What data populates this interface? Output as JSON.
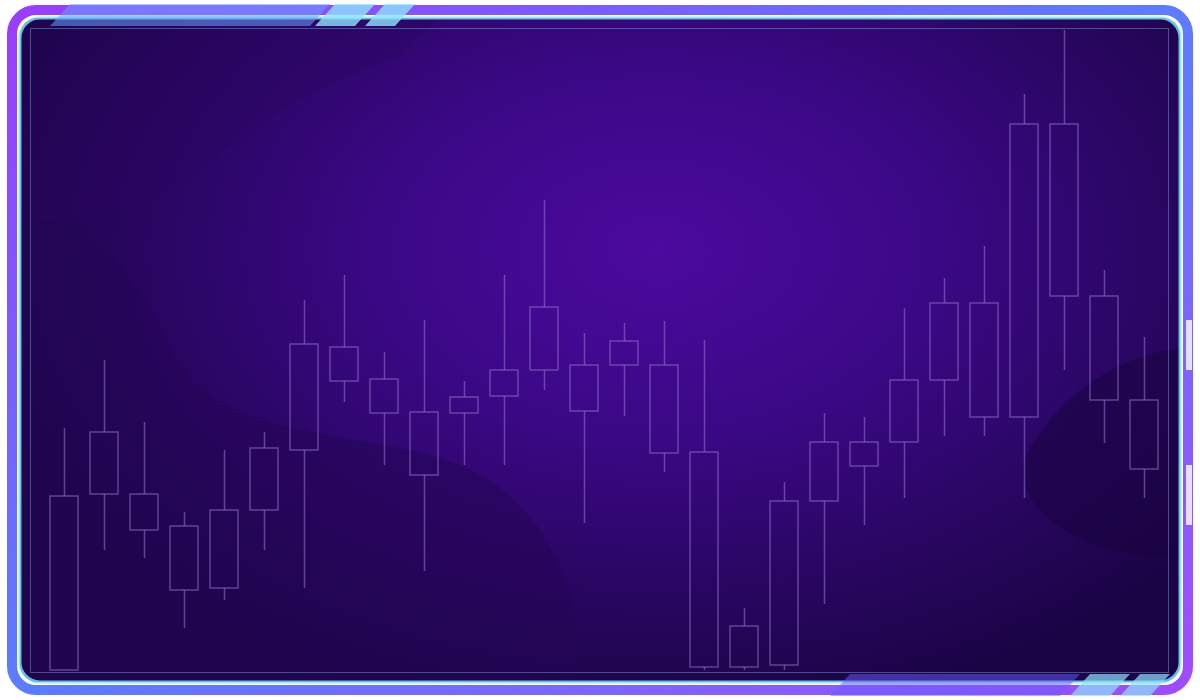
{
  "chart_data": {
    "type": "candlestick",
    "categories": [
      null,
      null,
      null,
      null,
      null,
      null,
      null,
      null,
      null,
      null,
      null,
      null,
      null,
      null,
      null,
      null,
      null,
      null,
      null,
      null,
      null,
      null,
      null,
      null,
      null,
      null,
      null,
      null
    ],
    "open": [
      0,
      176,
      140,
      80,
      82,
      160,
      220,
      289,
      257,
      195,
      257,
      274,
      300,
      259,
      305,
      217,
      3,
      3,
      5,
      169,
      204,
      228,
      290,
      253,
      253,
      374,
      270,
      201
    ],
    "close": [
      174,
      238,
      176,
      144,
      160,
      222,
      326,
      323,
      291,
      258,
      273,
      300,
      363,
      305,
      329,
      305,
      218,
      44,
      169,
      228,
      228,
      290,
      367,
      367,
      546,
      546,
      374,
      270
    ],
    "high": [
      242,
      310,
      248,
      158,
      220,
      238,
      370,
      395,
      318,
      350,
      289,
      395,
      470,
      337,
      347,
      349,
      330,
      62,
      188,
      257,
      253,
      362,
      392,
      424,
      576,
      640,
      400,
      333
    ],
    "low": [
      0,
      120,
      112,
      42,
      70,
      120,
      82,
      268,
      205,
      99,
      205,
      205,
      280,
      147,
      254,
      198,
      0,
      0,
      0,
      66,
      145,
      172,
      234,
      234,
      172,
      300,
      227,
      172
    ],
    "ylim": [
      0,
      640
    ],
    "color": "#8a6cc8",
    "tick_labels": false
  }
}
